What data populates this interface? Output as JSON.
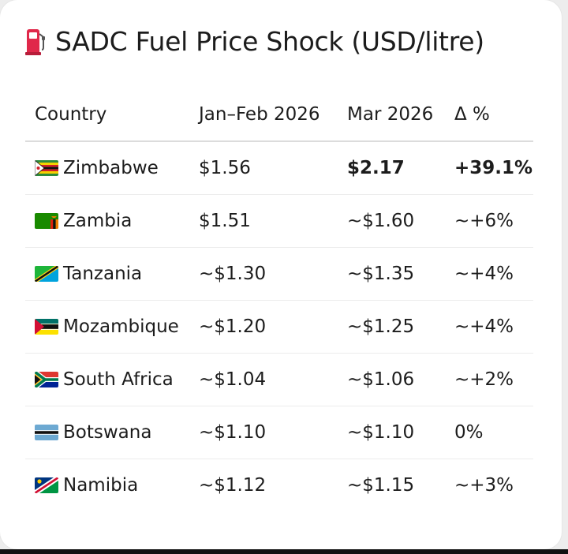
{
  "title": "SADC Fuel Price Shock (USD/litre)",
  "title_icon": "fuel-pump-icon",
  "columns": [
    "Country",
    "Jan–Feb 2026",
    "Mar 2026",
    "Δ %"
  ],
  "rows": [
    {
      "country": "Zimbabwe",
      "flag": "zimbabwe-flag-icon",
      "jan_feb": "$1.56",
      "mar": "$2.17",
      "delta": "+39.1%",
      "emphasis": true
    },
    {
      "country": "Zambia",
      "flag": "zambia-flag-icon",
      "jan_feb": "$1.51",
      "mar": "~$1.60",
      "delta": "~+6%"
    },
    {
      "country": "Tanzania",
      "flag": "tanzania-flag-icon",
      "jan_feb": "~$1.30",
      "mar": "~$1.35",
      "delta": "~+4%"
    },
    {
      "country": "Mozambique",
      "flag": "mozambique-flag-icon",
      "jan_feb": "~$1.20",
      "mar": "~$1.25",
      "delta": "~+4%"
    },
    {
      "country": "South Africa",
      "flag": "south-africa-flag-icon",
      "jan_feb": "~$1.04",
      "mar": "~$1.06",
      "delta": "~+2%"
    },
    {
      "country": "Botswana",
      "flag": "botswana-flag-icon",
      "jan_feb": "~$1.10",
      "mar": "~$1.10",
      "delta": "0%"
    },
    {
      "country": "Namibia",
      "flag": "namibia-flag-icon",
      "jan_feb": "~$1.12",
      "mar": "~$1.15",
      "delta": "~+3%"
    }
  ],
  "colors": {
    "pump": "#e0284a",
    "header_rule": "#dcdcdc",
    "row_rule": "#ececec"
  }
}
